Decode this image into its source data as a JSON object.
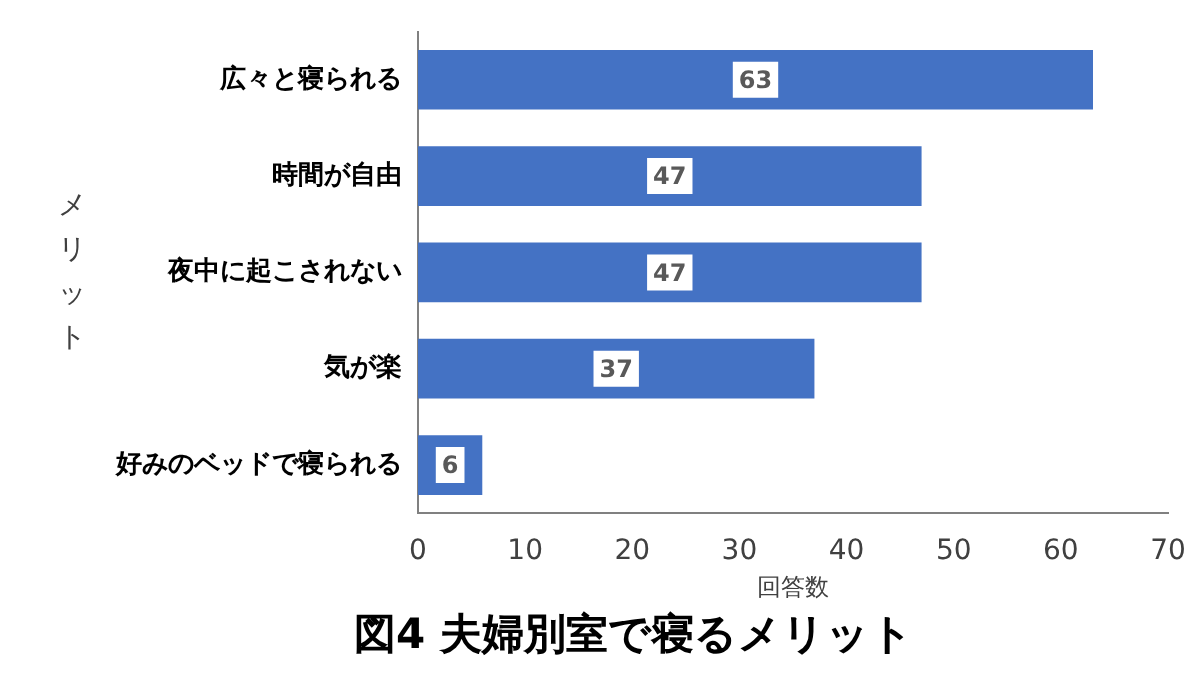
{
  "chart_data": {
    "type": "bar",
    "orientation": "horizontal",
    "title": "図4 夫婦別室で寝るメリット",
    "xlabel": "回答数",
    "ylabel": "メリット",
    "categories": [
      "広々と寝られる",
      "時間が自由",
      "夜中に起こされない",
      "気が楽",
      "好みのベッドで寝られる"
    ],
    "values": [
      63,
      47,
      47,
      37,
      6
    ],
    "color": "#4472c4",
    "xlim": [
      0,
      70
    ],
    "xticks": [
      0,
      10,
      20,
      30,
      40,
      50,
      60,
      70
    ],
    "grid": false,
    "legend": false,
    "data_labels": true
  }
}
